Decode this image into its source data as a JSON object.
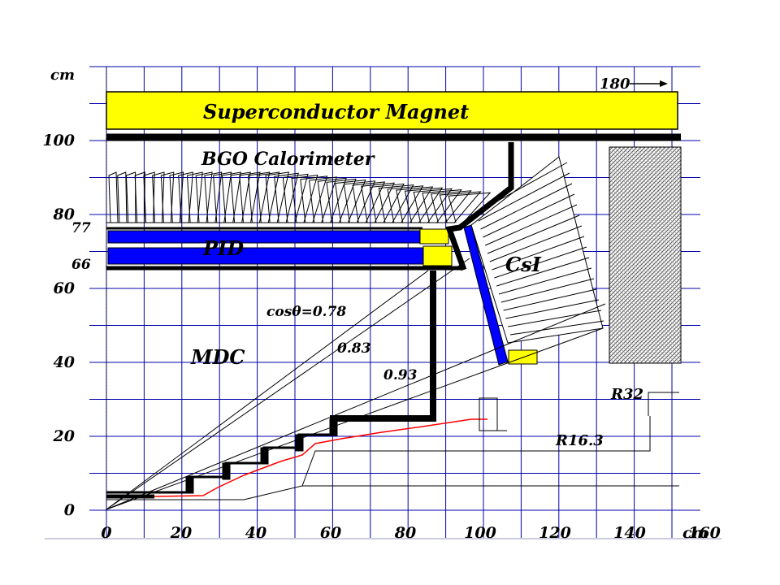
{
  "axes": {
    "y_unit": "cm",
    "x_unit": "cm",
    "x_ticks": [
      "0",
      "20",
      "40",
      "60",
      "80",
      "100",
      "120",
      "140",
      "160"
    ],
    "y_ticks": [
      "0",
      "20",
      "40",
      "60",
      "80",
      "100"
    ]
  },
  "labels": {
    "magnet": "Superconductor Magnet",
    "bgo": "BGO Calorimeter",
    "pid": "PID",
    "mdc": "MDC",
    "csi": "CsI",
    "cos_a": "cosθ=0.78",
    "cos_b": "0.83",
    "cos_c": "0.93",
    "r32": "R32",
    "r16": "R16.3",
    "dim180": "180",
    "r77": "77",
    "r66": "66"
  },
  "colors": {
    "magnet": "#ffff00",
    "pid": "#0000ff",
    "grid": "#0000aa",
    "beampipe": "#ff0000",
    "structure": "#000000"
  }
}
